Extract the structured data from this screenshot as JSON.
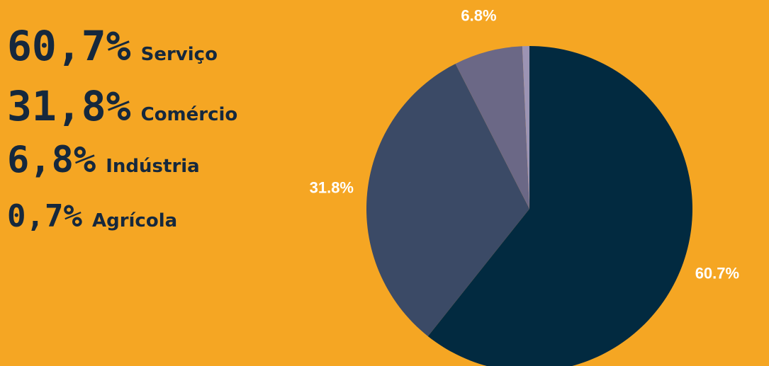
{
  "chart_data": {
    "type": "pie",
    "categories": [
      "Serviço",
      "Comércio",
      "Indústria",
      "Agrícola"
    ],
    "values": [
      60.7,
      31.8,
      6.8,
      0.7
    ],
    "value_labels": [
      "60.7%",
      "31.8%",
      "6.8%",
      null
    ],
    "legend_value_labels": [
      "60,7%",
      "31,8%",
      "6,8%",
      "0,7%"
    ],
    "colors": [
      "#022a40",
      "#3b4a66",
      "#6b6886",
      "#9c94b4"
    ]
  }
}
